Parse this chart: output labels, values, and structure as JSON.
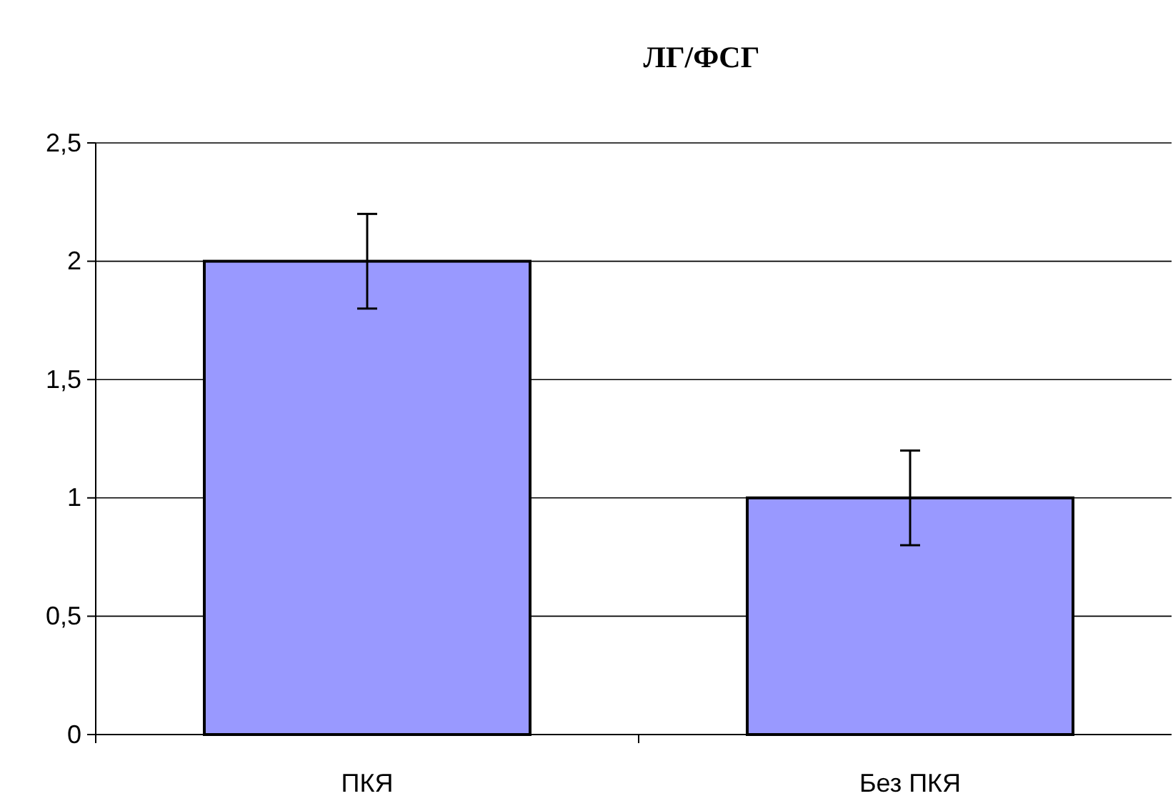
{
  "chart_data": {
    "type": "bar",
    "title": "ЛГ/ФСГ",
    "categories": [
      "ПКЯ",
      "Без ПКЯ"
    ],
    "series": [
      {
        "color": "#9999ff",
        "values": [
          2,
          1
        ],
        "errors": [
          0.2,
          0.2
        ]
      }
    ],
    "ylim": [
      0,
      2.5
    ],
    "yticks": [
      0,
      {
        "value": 0.5,
        "label": "0,5"
      },
      1,
      {
        "value": 1.5,
        "label": "1,5"
      },
      2,
      {
        "value": 2.5,
        "label": "2,5"
      }
    ],
    "grid": "y"
  }
}
